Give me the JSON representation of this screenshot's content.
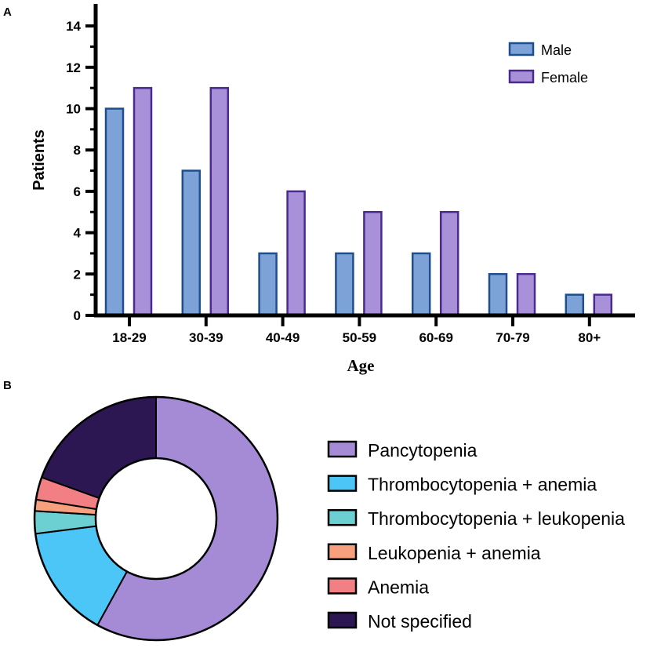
{
  "panels": {
    "a": "A",
    "b": "B"
  },
  "chart_data": [
    {
      "type": "bar",
      "categories": [
        "18-29",
        "30-39",
        "40-49",
        "50-59",
        "60-69",
        "70-79",
        "80+"
      ],
      "series": [
        {
          "name": "Male",
          "values": [
            10,
            7,
            3,
            3,
            3,
            2,
            1
          ],
          "color": "#7da2d8",
          "stroke": "#1f4e8c"
        },
        {
          "name": "Female",
          "values": [
            11,
            11,
            6,
            5,
            5,
            2,
            1
          ],
          "color": "#a991d9",
          "stroke": "#4b2a8f"
        }
      ],
      "title": "",
      "xlabel": "Age",
      "ylabel": "Patients",
      "ylim": [
        0,
        15
      ],
      "yticks": [
        0,
        2,
        4,
        6,
        8,
        10,
        12,
        14
      ],
      "grid": false,
      "legend": "top-right"
    },
    {
      "type": "pie",
      "donut": true,
      "labels": [
        "Pancytopenia",
        "Thrombocytopenia + anemia",
        "Thrombocytopenia + leukopenia",
        "Leukopenia + anemia",
        "Anemia",
        "Not specified"
      ],
      "values": [
        58,
        15,
        3,
        1.5,
        3,
        19.5
      ],
      "colors": [
        "#a58ad6",
        "#4cc6f7",
        "#6ccfd1",
        "#f6a07e",
        "#f17f84",
        "#2d1752"
      ],
      "legend": "right"
    }
  ]
}
